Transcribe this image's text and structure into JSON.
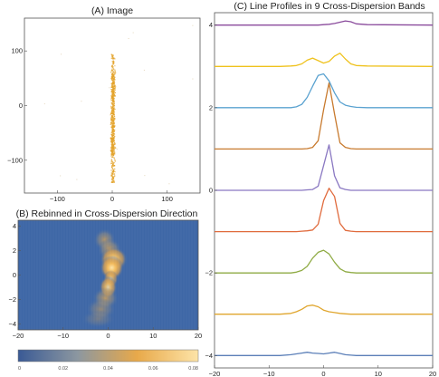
{
  "chart_data": [
    {
      "id": "A",
      "type": "scatter",
      "title": "(A) Image",
      "xlim": [
        -160,
        160
      ],
      "ylim": [
        -160,
        160
      ],
      "xticks": [
        -100,
        0,
        100
      ],
      "yticks": [
        -100,
        0,
        100
      ],
      "xtick_labels": [
        "−100",
        "0",
        "100"
      ],
      "ytick_labels": [
        "−100",
        "0",
        "100"
      ],
      "point_color": "#e3a32b",
      "description_of_distribution": "narrow vertical band of events along x = 0, densest between y = -80 and y = 60"
    },
    {
      "id": "B",
      "type": "heatmap",
      "title": "(B) Rebinned in Cross-Dispersion Direction",
      "xlim": [
        -20,
        20
      ],
      "ylim": [
        -4.5,
        4.5
      ],
      "xticks": [
        -20,
        -10,
        0,
        10,
        20
      ],
      "yticks": [
        -4,
        -2,
        0,
        2,
        4
      ],
      "xtick_labels": [
        "−20",
        "−10",
        "0",
        "10",
        "20"
      ],
      "ytick_labels": [
        "−4",
        "−2",
        "0",
        "2",
        "4"
      ],
      "colorbar": {
        "min": 0,
        "max": 0.08,
        "ticks": [
          "0",
          "0.02",
          "0.04",
          "0.06",
          "0.08"
        ],
        "colors": [
          "#3a5a95",
          "#8c97a0",
          "#e8a94a",
          "#fde4a8"
        ]
      },
      "background_color": "#3e67a6"
    },
    {
      "id": "C",
      "type": "line",
      "title": "(C) Line Profiles in 9 Cross-Dispersion Bands",
      "xlim": [
        -20,
        20
      ],
      "ylim": [
        -4.3,
        4.3
      ],
      "xticks": [
        -20,
        -10,
        0,
        10,
        20
      ],
      "yticks": [
        -4,
        -2,
        0,
        2,
        4
      ],
      "xtick_labels": [
        "−20",
        "−10",
        "0",
        "10",
        "20"
      ],
      "ytick_labels": [
        "−4",
        "−2",
        "0",
        "2",
        "4"
      ],
      "x": [
        -20,
        -8,
        -6,
        -5,
        -4,
        -3,
        -2,
        -1,
        0,
        1,
        2,
        3,
        4,
        5,
        6,
        8,
        20
      ],
      "series": [
        {
          "offset": -4,
          "color": "#5b7fb8",
          "values": [
            0,
            0,
            0.02,
            0.04,
            0.06,
            0.08,
            0.06,
            0.05,
            0.04,
            0.06,
            0.08,
            0.05,
            0.02,
            0.01,
            0,
            0,
            0
          ]
        },
        {
          "offset": -3,
          "color": "#e0a62e",
          "values": [
            0,
            0,
            0.02,
            0.06,
            0.12,
            0.2,
            0.22,
            0.18,
            0.1,
            0.06,
            0.04,
            0.02,
            0.01,
            0,
            0,
            0,
            0
          ]
        },
        {
          "offset": -2,
          "color": "#8fab44",
          "values": [
            0,
            0,
            0,
            0.02,
            0.06,
            0.16,
            0.36,
            0.5,
            0.55,
            0.46,
            0.26,
            0.1,
            0.03,
            0.01,
            0,
            0,
            0
          ]
        },
        {
          "offset": -1,
          "color": "#e06a3c",
          "values": [
            0,
            0,
            0,
            0,
            0.01,
            0.02,
            0.04,
            0.18,
            0.75,
            1.05,
            0.85,
            0.2,
            0.03,
            0.01,
            0,
            0,
            0
          ]
        },
        {
          "offset": 0,
          "color": "#8a78c2",
          "values": [
            0,
            0,
            0,
            0,
            0,
            0.01,
            0.02,
            0.1,
            0.6,
            1.1,
            0.35,
            0.06,
            0.02,
            0,
            0,
            0,
            0
          ]
        },
        {
          "offset": 1,
          "color": "#c87a2e",
          "values": [
            0,
            0,
            0,
            0,
            0,
            0.01,
            0.04,
            0.2,
            0.95,
            1.6,
            0.85,
            0.15,
            0.04,
            0.01,
            0,
            0,
            0
          ]
        },
        {
          "offset": 2,
          "color": "#5aa2d0",
          "values": [
            0,
            0,
            0,
            0.02,
            0.08,
            0.25,
            0.52,
            0.78,
            0.82,
            0.65,
            0.36,
            0.14,
            0.06,
            0.03,
            0.01,
            0,
            0
          ]
        },
        {
          "offset": 3,
          "color": "#efc21d",
          "values": [
            0,
            0,
            0.01,
            0.02,
            0.06,
            0.15,
            0.2,
            0.14,
            0.08,
            0.12,
            0.25,
            0.32,
            0.18,
            0.06,
            0.02,
            0.01,
            0
          ]
        },
        {
          "offset": 4,
          "color": "#8a4b9c",
          "values": [
            0,
            0,
            0,
            0,
            0,
            0,
            0,
            0,
            0.01,
            0.02,
            0.04,
            0.07,
            0.1,
            0.08,
            0.03,
            0.01,
            0
          ]
        }
      ]
    }
  ]
}
